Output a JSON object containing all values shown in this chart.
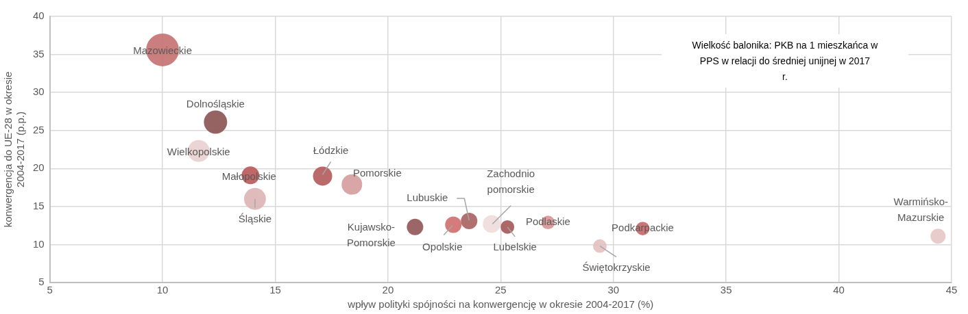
{
  "chart_data": {
    "type": "bubble",
    "xlabel": "wpływ polityki spójności na konwergencję w okresie 2004-2017 (%)",
    "ylabel": "konwergencja do UE-28 w okresie 2004-2017 (p.p.)",
    "xlim": [
      5,
      45
    ],
    "ylim": [
      5,
      40
    ],
    "xticks": [
      5,
      10,
      15,
      20,
      25,
      30,
      35,
      40,
      45
    ],
    "yticks": [
      5,
      10,
      15,
      20,
      25,
      30,
      35,
      40
    ],
    "grid": true,
    "legend": false,
    "annotations": [
      "Wielkość balonika: PKB na 1 mieszkańca w PPS w relacji do średniej unijnej w 2017 r."
    ],
    "series": [
      {
        "name": "Mazowieckie",
        "color": "#c47170",
        "x": [
          10.0
        ],
        "values": [
          35.6
        ],
        "sizes": [
          1
        ]
      },
      {
        "name": "Dolnośląskie",
        "color": "#8b5252",
        "x": [
          12.35
        ],
        "values": [
          26.1
        ],
        "sizes": [
          0.5
        ]
      },
      {
        "name": "Wielkopolskie",
        "color": "#e8cfcf",
        "x": [
          11.6
        ],
        "values": [
          22.3
        ],
        "sizes": [
          0.44
        ]
      },
      {
        "name": "Małopolskie",
        "color": "#b95757",
        "x": [
          13.9
        ],
        "values": [
          19.1
        ],
        "sizes": [
          0.29
        ]
      },
      {
        "name": "Śląskie",
        "color": "#dcb4b4",
        "x": [
          14.1
        ],
        "values": [
          16.0
        ],
        "sizes": [
          0.44
        ]
      },
      {
        "name": "Łódzkie",
        "color": "#b45a5c",
        "x": [
          17.1
        ],
        "values": [
          19.0
        ],
        "sizes": [
          0.34
        ]
      },
      {
        "name": "Pomorskie",
        "color": "#d49c9c",
        "x": [
          18.4
        ],
        "values": [
          17.9
        ],
        "sizes": [
          0.39
        ]
      },
      {
        "name": "Kujawsko-Pomorskie",
        "color": "#915555",
        "x": [
          21.2
        ],
        "values": [
          12.3
        ],
        "sizes": [
          0.25
        ]
      },
      {
        "name": "Opolskie",
        "color": "#cf6e6e",
        "x": [
          22.9
        ],
        "values": [
          12.6
        ],
        "sizes": [
          0.25
        ]
      },
      {
        "name": "Lubuskie",
        "color": "#a86060",
        "x": [
          23.6
        ],
        "values": [
          13.1
        ],
        "sizes": [
          0.25
        ]
      },
      {
        "name": "Zachodnio pomorskie",
        "color": "#f0dcdc",
        "x": [
          24.6
        ],
        "values": [
          12.7
        ],
        "sizes": [
          0.29
        ]
      },
      {
        "name": "Lubelskie",
        "color": "#a45656",
        "x": [
          25.3
        ],
        "values": [
          12.3
        ],
        "sizes": [
          0.17
        ]
      },
      {
        "name": "Podlaskie",
        "color": "#d99292",
        "x": [
          27.1
        ],
        "values": [
          12.9
        ],
        "sizes": [
          0.17
        ]
      },
      {
        "name": "Podkarpackie",
        "color": "#c86565",
        "x": [
          31.3
        ],
        "values": [
          12.1
        ],
        "sizes": [
          0.17
        ]
      },
      {
        "name": "Świętokrzyskie",
        "color": "#e4c0c0",
        "x": [
          29.4
        ],
        "values": [
          9.8
        ],
        "sizes": [
          0.17
        ]
      },
      {
        "name": "Warmińsko-Mazurskie",
        "color": "#e6c6c6",
        "x": [
          44.4
        ],
        "values": [
          11.1
        ],
        "sizes": [
          0.21
        ]
      }
    ]
  }
}
